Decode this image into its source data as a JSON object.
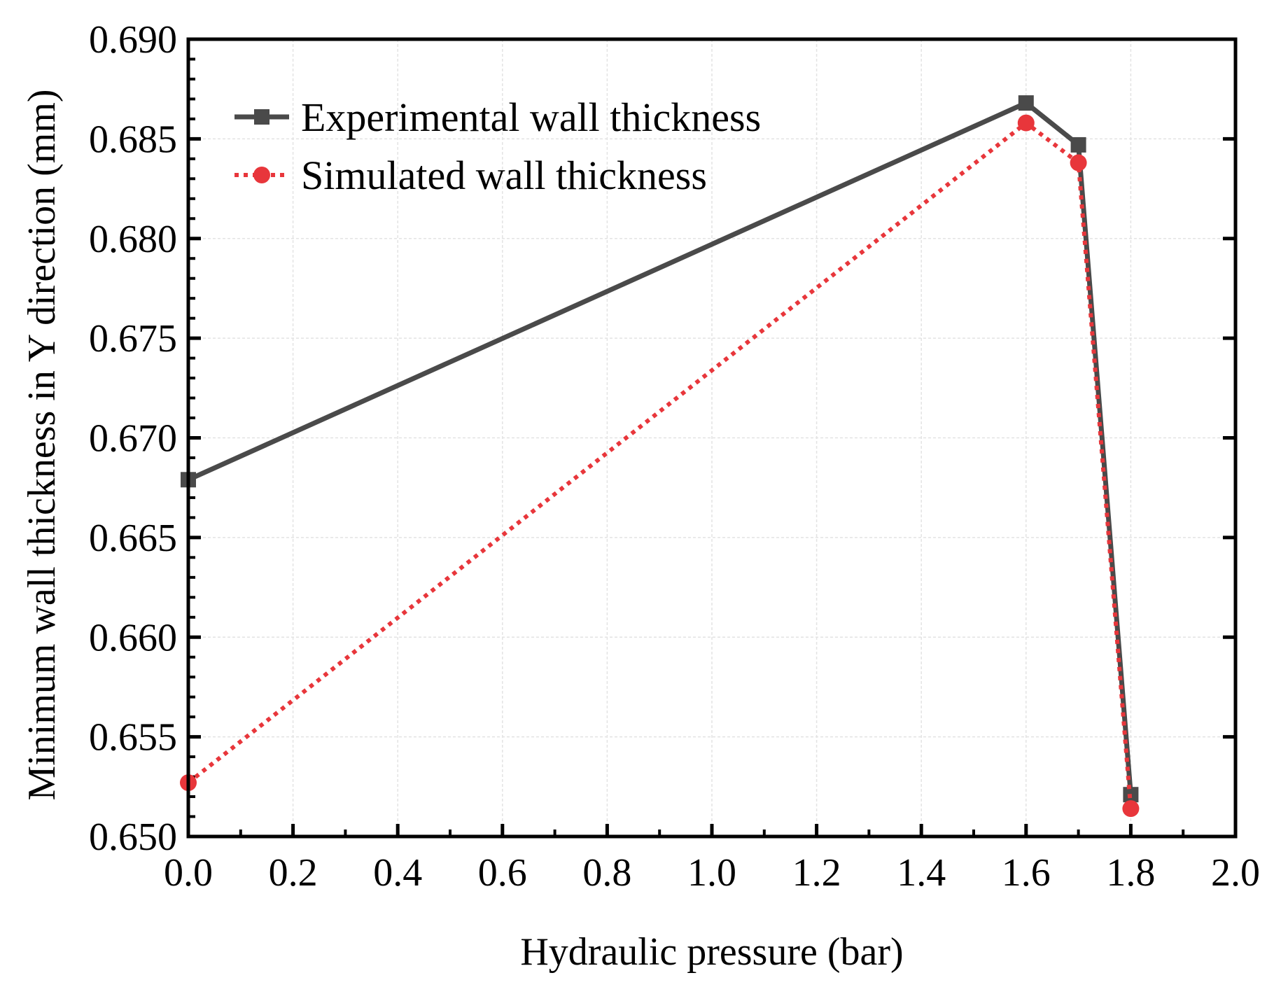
{
  "chart_data": {
    "type": "line",
    "title": "",
    "xlabel": "Hydraulic pressure (bar)",
    "ylabel": "Minimum wall thickness in Y direction (mm)",
    "xlim": [
      0.0,
      2.0
    ],
    "ylim": [
      0.65,
      0.69
    ],
    "xticks": [
      "0.0",
      "0.2",
      "0.4",
      "0.6",
      "0.8",
      "1.0",
      "1.2",
      "1.4",
      "1.6",
      "1.8",
      "2.0"
    ],
    "yticks": [
      "0.650",
      "0.655",
      "0.660",
      "0.665",
      "0.670",
      "0.675",
      "0.680",
      "0.685",
      "0.690"
    ],
    "grid": true,
    "legend_position": "top-left",
    "series": [
      {
        "name": "Experimental wall thickness",
        "color": "#4a4a4a",
        "line_style": "solid",
        "marker": "square",
        "x": [
          0.0,
          1.6,
          1.7,
          1.8
        ],
        "y": [
          0.6679,
          0.6868,
          0.6847,
          0.6521
        ]
      },
      {
        "name": "Simulated wall thickness",
        "color": "#e8363b",
        "line_style": "dotted",
        "marker": "circle",
        "x": [
          0.0,
          1.6,
          1.7,
          1.8
        ],
        "y": [
          0.6527,
          0.6858,
          0.6838,
          0.6514
        ]
      }
    ]
  }
}
